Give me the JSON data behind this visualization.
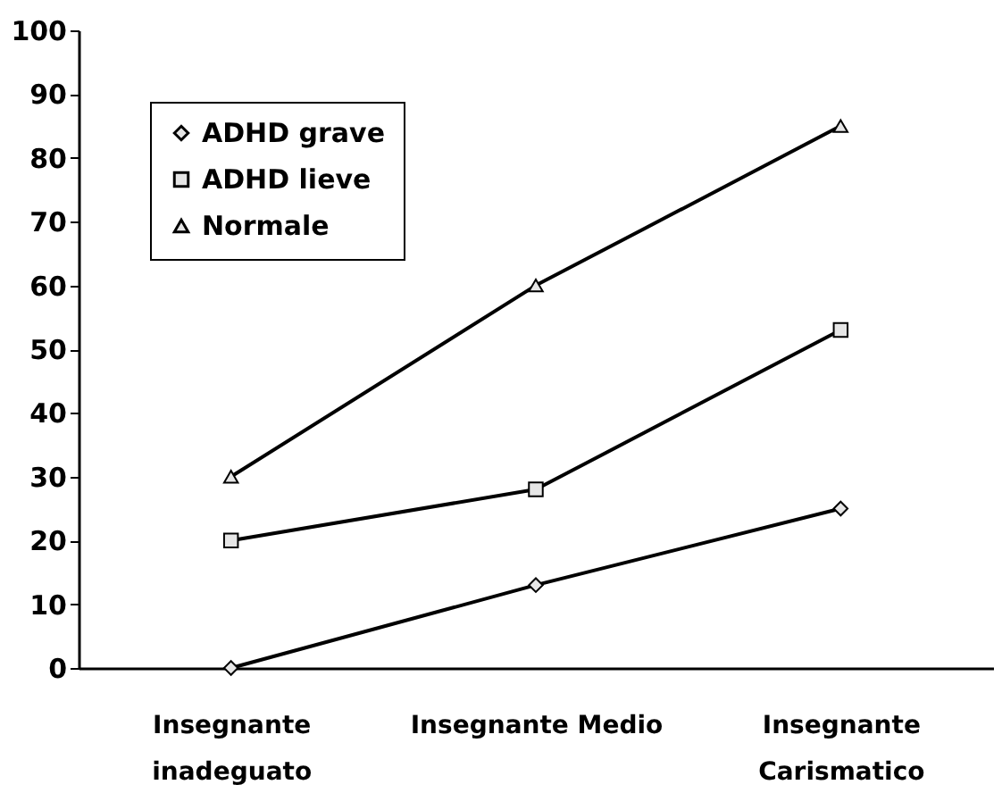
{
  "chart_data": {
    "type": "line",
    "categories": [
      "Insegnante inadeguato",
      "Insegnante Medio",
      "Insegnante Carismatico"
    ],
    "series": [
      {
        "name": "ADHD grave",
        "color": "#000000",
        "marker": "diamond",
        "values": [
          0,
          13,
          25
        ]
      },
      {
        "name": "ADHD lieve",
        "color": "#000000",
        "marker": "square",
        "values": [
          20,
          28,
          53
        ]
      },
      {
        "name": "Normale",
        "color": "#000000",
        "marker": "triangle",
        "values": [
          30,
          60,
          85
        ]
      }
    ],
    "ylim": [
      0,
      100
    ],
    "yticks": [
      0,
      10,
      20,
      30,
      40,
      50,
      60,
      70,
      80,
      90,
      100
    ],
    "grid": false,
    "legend": "top left",
    "line_style": "solid"
  }
}
